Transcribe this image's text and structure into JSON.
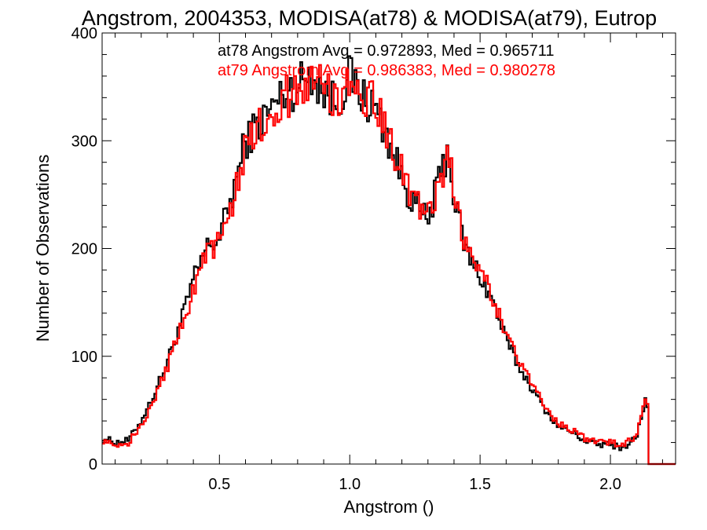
{
  "chart_data": {
    "type": "line",
    "title": "Angstrom, 2004353, MODISA(at78) & MODISA(at79), Eutrop",
    "xlabel": "Angstrom ()",
    "ylabel": "Number of Observations",
    "xlim": [
      0.05,
      2.25
    ],
    "ylim": [
      0,
      400
    ],
    "x_ticks": [
      0.5,
      1.0,
      1.5,
      2.0
    ],
    "x_tick_labels": [
      "0.5",
      "1.0",
      "1.5",
      "2.0"
    ],
    "y_ticks": [
      0,
      100,
      200,
      300,
      400
    ],
    "y_tick_labels": [
      "0",
      "100",
      "200",
      "300",
      "400"
    ],
    "grid": false,
    "step": "histogram",
    "x": [
      0.05,
      0.1,
      0.15,
      0.2,
      0.25,
      0.3,
      0.35,
      0.4,
      0.45,
      0.5,
      0.55,
      0.6,
      0.65,
      0.7,
      0.75,
      0.8,
      0.85,
      0.9,
      0.95,
      1.0,
      1.05,
      1.1,
      1.15,
      1.2,
      1.25,
      1.3,
      1.35,
      1.38,
      1.4,
      1.45,
      1.5,
      1.55,
      1.6,
      1.65,
      1.7,
      1.75,
      1.8,
      1.85,
      1.9,
      1.95,
      2.0,
      2.05,
      2.1,
      2.14,
      2.15,
      2.16,
      2.25
    ],
    "series": [
      {
        "name": "at78",
        "color": "#000000",
        "values": [
          25,
          20,
          22,
          40,
          65,
          95,
          130,
          170,
          200,
          210,
          250,
          300,
          315,
          330,
          345,
          350,
          365,
          345,
          335,
          360,
          340,
          330,
          300,
          265,
          240,
          225,
          270,
          295,
          245,
          195,
          175,
          150,
          115,
          90,
          70,
          50,
          35,
          30,
          22,
          18,
          18,
          15,
          25,
          65,
          0,
          0,
          0
        ]
      },
      {
        "name": "at79",
        "color": "#ff0000",
        "values": [
          22,
          18,
          20,
          35,
          60,
          90,
          125,
          160,
          195,
          205,
          245,
          295,
          310,
          325,
          340,
          345,
          360,
          350,
          340,
          355,
          345,
          335,
          305,
          270,
          245,
          230,
          265,
          290,
          250,
          200,
          180,
          155,
          120,
          95,
          75,
          52,
          38,
          32,
          24,
          20,
          20,
          17,
          27,
          70,
          0,
          0,
          0
        ]
      }
    ],
    "annotations": [
      {
        "text": "at78 Angstrom Avg = 0.972893, Med = 0.965711",
        "color": "#000000"
      },
      {
        "text": "at79 Angstrom Avg = 0.986383, Med = 0.980278",
        "color": "#ff0000"
      }
    ]
  }
}
